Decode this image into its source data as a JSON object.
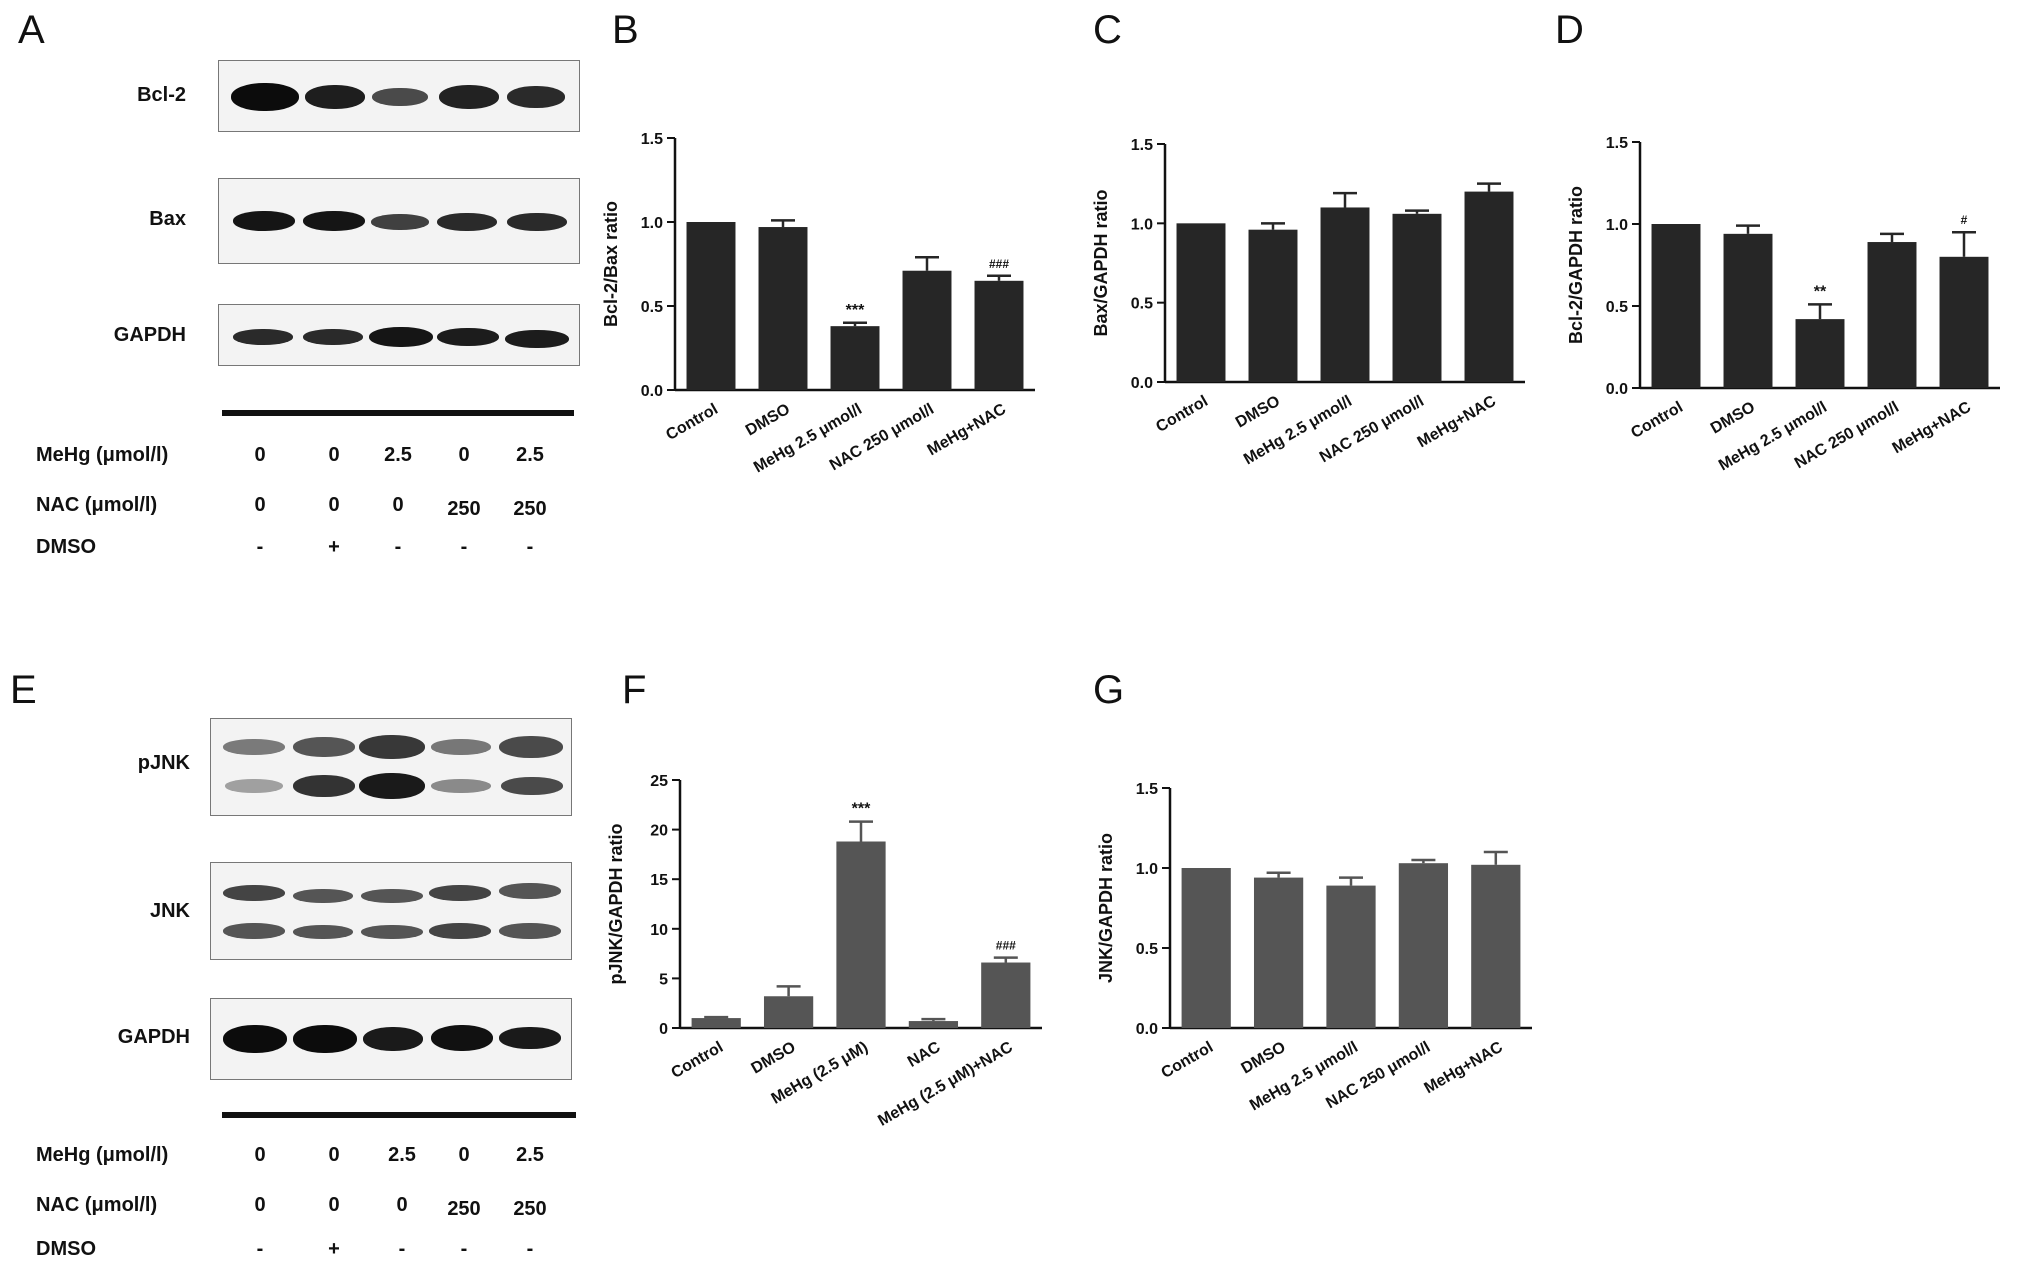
{
  "panels": {
    "A": "A",
    "B": "B",
    "C": "C",
    "D": "D",
    "E": "E",
    "F": "F",
    "G": "G"
  },
  "blot_A": {
    "rows": [
      "Bcl-2",
      "Bax",
      "GAPDH"
    ],
    "conditions": [
      {
        "label": "MeHg (μmol/l)",
        "values": [
          "0",
          "0",
          "2.5",
          "0",
          "2.5"
        ]
      },
      {
        "label": "NAC (μmol/l)",
        "values": [
          "0",
          "0",
          "0",
          "250",
          "250"
        ]
      },
      {
        "label": "DMSO",
        "values": [
          "-",
          "+",
          "-",
          "-",
          "-"
        ]
      }
    ]
  },
  "blot_E": {
    "rows": [
      "pJNK",
      "JNK",
      "GAPDH"
    ],
    "conditions": [
      {
        "label": "MeHg  (μmol/l)",
        "values": [
          "0",
          "0",
          "2.5",
          "0",
          "2.5"
        ]
      },
      {
        "label": "NAC  (μmol/l)",
        "values": [
          "0",
          "0",
          "0",
          "250",
          "250"
        ]
      },
      {
        "label": "DMSO",
        "values": [
          "-",
          "+",
          "-",
          "-",
          "-"
        ]
      }
    ]
  },
  "chart_data": [
    {
      "panel": "B",
      "type": "bar",
      "categories": [
        "Control",
        "DMSO",
        "MeHg 2.5 μmol/l",
        "NAC 250 μmol/l",
        "MeHg+NAC"
      ],
      "values": [
        1.0,
        0.97,
        0.38,
        0.71,
        0.65
      ],
      "errors": [
        0.0,
        0.04,
        0.02,
        0.08,
        0.03
      ],
      "annotations": [
        "",
        "",
        "***",
        "",
        "###"
      ],
      "ylabel": "Bcl-2/Bax ratio",
      "ylim": [
        0,
        1.5
      ],
      "yticks": [
        "0.0",
        "0.5",
        "1.0",
        "1.5"
      ],
      "color": "#262626"
    },
    {
      "panel": "C",
      "type": "bar",
      "categories": [
        "Control",
        "DMSO",
        "MeHg 2.5 μmol/l",
        "NAC 250 μmol/l",
        "MeHg+NAC"
      ],
      "values": [
        1.0,
        0.96,
        1.1,
        1.06,
        1.2
      ],
      "errors": [
        0.0,
        0.04,
        0.09,
        0.02,
        0.05
      ],
      "annotations": [
        "",
        "",
        "",
        "",
        ""
      ],
      "ylabel": "Bax/GAPDH ratio",
      "ylim": [
        0,
        1.5
      ],
      "yticks": [
        "0.0",
        "0.5",
        "1.0",
        "1.5"
      ],
      "color": "#262626"
    },
    {
      "panel": "D",
      "type": "bar",
      "categories": [
        "Control",
        "DMSO",
        "MeHg 2.5 μmol/l",
        "NAC 250 μmol/l",
        "MeHg+NAC"
      ],
      "values": [
        1.0,
        0.94,
        0.42,
        0.89,
        0.8
      ],
      "errors": [
        0.0,
        0.05,
        0.09,
        0.05,
        0.15
      ],
      "annotations": [
        "",
        "",
        "**",
        "",
        "#"
      ],
      "ylabel": "Bcl-2/GAPDH ratio",
      "ylim": [
        0,
        1.5
      ],
      "yticks": [
        "0.0",
        "0.5",
        "1.0",
        "1.5"
      ],
      "color": "#262626"
    },
    {
      "panel": "F",
      "type": "bar",
      "categories": [
        "Control",
        "DMSO",
        "MeHg (2.5 μM)",
        "NAC",
        "MeHg (2.5 μM)+NAC"
      ],
      "values": [
        1.0,
        3.2,
        18.8,
        0.7,
        6.6
      ],
      "errors": [
        0.1,
        1.0,
        2.0,
        0.2,
        0.5
      ],
      "annotations": [
        "",
        "",
        "***",
        "",
        "###"
      ],
      "ylabel": "pJNK/GAPDH ratio",
      "ylim": [
        0,
        25
      ],
      "yticks": [
        "0",
        "5",
        "10",
        "15",
        "20",
        "25"
      ],
      "color": "#555555"
    },
    {
      "panel": "G",
      "type": "bar",
      "categories": [
        "Control",
        "DMSO",
        "MeHg 2.5 μmol/l",
        "NAC 250 μmol/l",
        "MeHg+NAC"
      ],
      "values": [
        1.0,
        0.94,
        0.89,
        1.03,
        1.02
      ],
      "errors": [
        0.0,
        0.03,
        0.05,
        0.02,
        0.08
      ],
      "annotations": [
        "",
        "",
        "",
        "",
        ""
      ],
      "ylabel": "JNK/GAPDH ratio",
      "ylim": [
        0,
        1.5
      ],
      "yticks": [
        "0.0",
        "0.5",
        "1.0",
        "1.5"
      ],
      "color": "#555555"
    }
  ]
}
